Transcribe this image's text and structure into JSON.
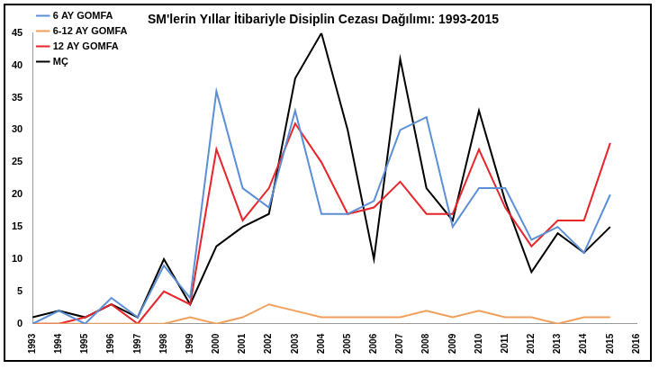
{
  "chart_data": {
    "type": "line",
    "title": "SM'lerin Yıllar İtibariyle Disiplin Cezası Dağılımı: 1993-2015",
    "categories": [
      "1993",
      "1994",
      "1995",
      "1996",
      "1997",
      "1998",
      "1999",
      "2000",
      "2001",
      "2002",
      "2003",
      "2004",
      "2005",
      "2006",
      "2007",
      "2008",
      "2009",
      "2010",
      "2011",
      "2012",
      "2013",
      "2014",
      "2015",
      "2016"
    ],
    "series": [
      {
        "name": "6 AY GOMFA",
        "color": "#5b8fd6",
        "values": [
          0,
          2,
          0,
          4,
          1,
          9,
          4,
          36,
          21,
          18,
          33,
          17,
          17,
          19,
          30,
          32,
          15,
          21,
          21,
          13,
          15,
          11,
          20,
          null
        ]
      },
      {
        "name": "6-12 AY GOMFA",
        "color": "#f0a05a",
        "values": [
          0,
          0,
          0,
          0,
          0,
          0,
          1,
          0,
          1,
          3,
          2,
          1,
          1,
          1,
          1,
          2,
          1,
          2,
          1,
          1,
          0,
          1,
          1,
          null
        ]
      },
      {
        "name": "12 AY GOMFA",
        "color": "#e8252a",
        "values": [
          0,
          0,
          1,
          3,
          0,
          5,
          3,
          27,
          16,
          21,
          31,
          25,
          17,
          18,
          22,
          17,
          17,
          27,
          18,
          12,
          16,
          16,
          28,
          null
        ]
      },
      {
        "name": "MÇ",
        "color": "#000000",
        "values": [
          1,
          2,
          1,
          3,
          1,
          10,
          3,
          12,
          15,
          17,
          38,
          45,
          30,
          10,
          41,
          21,
          16,
          33,
          19,
          8,
          14,
          11,
          15,
          null
        ]
      }
    ],
    "ylim": [
      0,
      45
    ],
    "yticks": [
      0,
      5,
      10,
      15,
      20,
      25,
      30,
      35,
      40,
      45
    ],
    "grid": false,
    "legend": "top-left"
  }
}
